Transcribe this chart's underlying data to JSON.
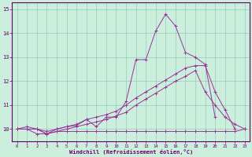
{
  "background_color": "#cceedd",
  "grid_color": "#99ccbb",
  "line_color": "#993399",
  "xlabel": "Windchill (Refroidissement éolien,°C)",
  "xlabel_color": "#660066",
  "tick_color": "#660066",
  "xlim": [
    -0.5,
    23.5
  ],
  "ylim": [
    9.5,
    15.3
  ],
  "yticks": [
    10,
    11,
    12,
    13,
    14,
    15
  ],
  "xticks": [
    0,
    1,
    2,
    3,
    4,
    5,
    6,
    7,
    8,
    9,
    10,
    11,
    12,
    13,
    14,
    15,
    16,
    17,
    18,
    19,
    20,
    21,
    22,
    23
  ],
  "series": [
    {
      "x": [
        0,
        1,
        2,
        3,
        4,
        5,
        6,
        7,
        8,
        9,
        10,
        11,
        12,
        13,
        14,
        15,
        16,
        17,
        18,
        19,
        20,
        21,
        22,
        23
      ],
      "y": [
        10.0,
        10.0,
        9.8,
        9.8,
        9.9,
        9.9,
        9.9,
        9.9,
        9.9,
        9.9,
        9.9,
        9.9,
        9.9,
        9.9,
        9.9,
        9.9,
        9.9,
        9.9,
        9.9,
        9.9,
        9.9,
        9.9,
        9.9,
        10.0
      ]
    },
    {
      "x": [
        0,
        1,
        2,
        3,
        4,
        5,
        6,
        7,
        8,
        9,
        10,
        11,
        12,
        13,
        14,
        15,
        16,
        17,
        18,
        19,
        20,
        21,
        22,
        23
      ],
      "y": [
        10.0,
        10.0,
        10.0,
        9.8,
        9.9,
        10.0,
        10.1,
        10.2,
        10.3,
        10.4,
        10.55,
        10.7,
        11.0,
        11.25,
        11.5,
        11.75,
        12.0,
        12.2,
        12.45,
        11.55,
        11.0,
        10.5,
        10.2,
        10.0
      ]
    },
    {
      "x": [
        0,
        1,
        2,
        3,
        4,
        5,
        6,
        7,
        8,
        9,
        10,
        11,
        12,
        13,
        14,
        15,
        16,
        17,
        18,
        19,
        20,
        21,
        22,
        23
      ],
      "y": [
        10.0,
        10.0,
        10.0,
        9.9,
        10.0,
        10.1,
        10.2,
        10.4,
        10.5,
        10.6,
        10.75,
        11.0,
        11.3,
        11.55,
        11.8,
        12.05,
        12.3,
        12.55,
        12.65,
        12.65,
        11.55,
        10.8,
        10.0,
        null
      ]
    },
    {
      "x": [
        0,
        1,
        2,
        3,
        4,
        5,
        6,
        7,
        8,
        9,
        10,
        11,
        12,
        13,
        14,
        15,
        16,
        17,
        18,
        19,
        20
      ],
      "y": [
        10.0,
        10.1,
        10.0,
        9.8,
        10.0,
        10.1,
        10.15,
        10.4,
        10.1,
        10.5,
        10.5,
        11.15,
        12.9,
        12.9,
        14.1,
        14.8,
        14.3,
        13.2,
        13.0,
        12.7,
        10.5
      ]
    }
  ]
}
